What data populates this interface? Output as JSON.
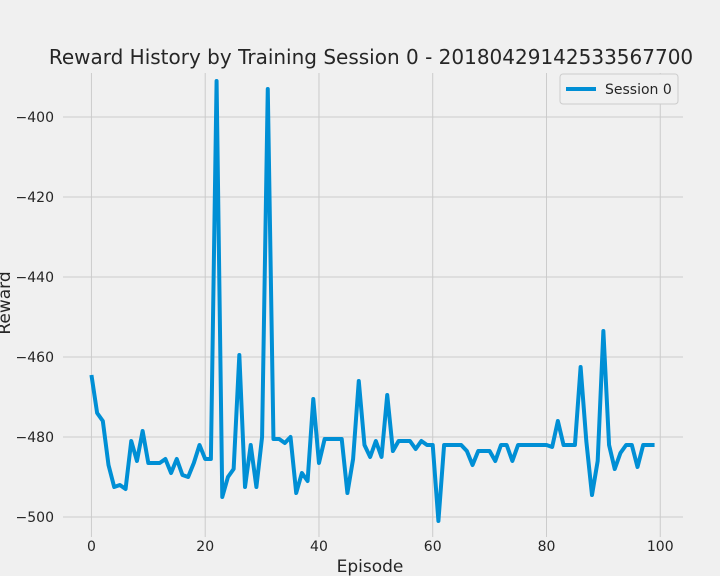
{
  "chart_data": {
    "type": "line",
    "title": "Reward History by Training Session 0 - 20180429142533567700",
    "xlabel": "Episode",
    "ylabel": "Reward",
    "xlim": [
      -5,
      104
    ],
    "ylim": [
      -505,
      -389
    ],
    "x_ticks": [
      0,
      20,
      40,
      60,
      80,
      100
    ],
    "x_tick_labels": [
      "0",
      "20",
      "40",
      "60",
      "80",
      "100"
    ],
    "y_ticks": [
      -500,
      -480,
      -460,
      -440,
      -420,
      -400
    ],
    "y_tick_labels": [
      "−500",
      "−480",
      "−460",
      "−440",
      "−420",
      "−400"
    ],
    "grid": true,
    "legend_placement": "top-right",
    "line_color": "#008fd5",
    "series": [
      {
        "name": "Session 0",
        "x": [
          0,
          1,
          2,
          3,
          4,
          5,
          6,
          7,
          8,
          9,
          10,
          11,
          12,
          13,
          14,
          15,
          16,
          17,
          18,
          19,
          20,
          21,
          22,
          23,
          24,
          25,
          26,
          27,
          28,
          29,
          30,
          31,
          32,
          33,
          34,
          35,
          36,
          37,
          38,
          39,
          40,
          41,
          42,
          43,
          44,
          45,
          46,
          47,
          48,
          49,
          50,
          51,
          52,
          53,
          54,
          55,
          56,
          57,
          58,
          59,
          60,
          61,
          62,
          63,
          64,
          65,
          66,
          67,
          68,
          69,
          70,
          71,
          72,
          73,
          74,
          75,
          76,
          77,
          78,
          79,
          80,
          81,
          82,
          83,
          84,
          85,
          86,
          87,
          88,
          89,
          90,
          91,
          92,
          93,
          94,
          95,
          96,
          97,
          98,
          99
        ],
        "values": [
          -464.5,
          -474,
          -476,
          -487,
          -492.5,
          -492,
          -493,
          -481,
          -486,
          -478.5,
          -486.5,
          -486.5,
          -486.5,
          -485.5,
          -489,
          -485.5,
          -489.5,
          -490,
          -486.5,
          -482,
          -485.5,
          -485.5,
          -391,
          -495,
          -490,
          -488,
          -459.5,
          -492.5,
          -482,
          -492.5,
          -480,
          -393,
          -480.5,
          -480.5,
          -481.5,
          -480,
          -494,
          -489,
          -491,
          -470.5,
          -486.5,
          -480.5,
          -480.5,
          -480.5,
          -480.5,
          -494,
          -485.5,
          -466,
          -482,
          -485,
          -481,
          -485,
          -469.5,
          -483.5,
          -481,
          -481,
          -481,
          -483,
          -481,
          -482,
          -482,
          -501,
          -482,
          -482,
          -482,
          -482,
          -483.5,
          -487,
          -483.5,
          -483.5,
          -483.5,
          -486,
          -482,
          -482,
          -486,
          -482,
          -482,
          -482,
          -482,
          -482,
          -482,
          -482.5,
          -476,
          -482,
          -482,
          -482,
          -462.5,
          -481,
          -494.5,
          -486,
          -453.5,
          -482,
          -488,
          -484,
          -482,
          -482,
          -487.5,
          -482,
          -482,
          -482
        ]
      }
    ]
  }
}
